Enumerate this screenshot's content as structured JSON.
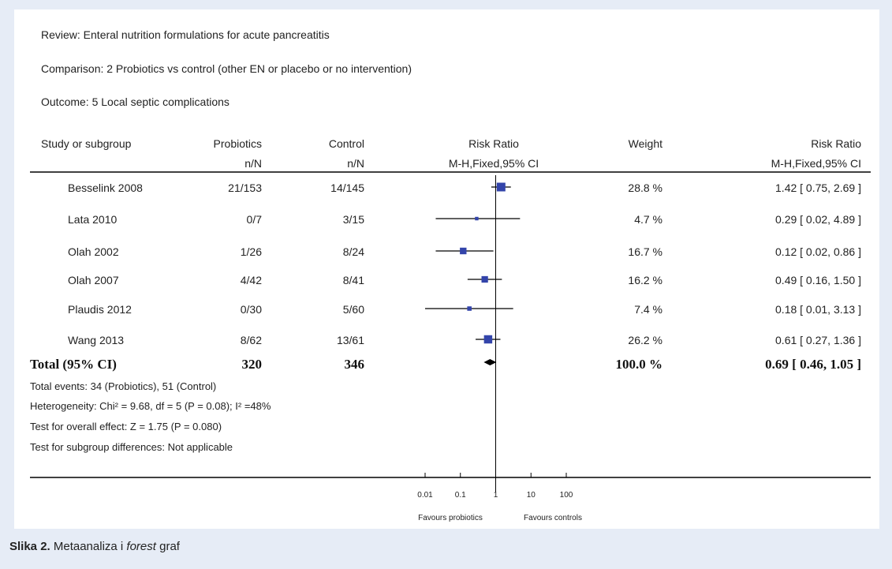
{
  "header": {
    "review": "Review:   Enteral nutrition formulations for acute pancreatitis",
    "comparison": "Comparison:   2 Probiotics vs control (other EN or placebo or no intervention)",
    "outcome": "Outcome:   5 Local septic complications"
  },
  "columns": {
    "study": "Study or subgroup",
    "probiotics": "Probiotics",
    "probiotics_sub": "n/N",
    "control": "Control",
    "control_sub": "n/N",
    "rr_plot": "Risk Ratio",
    "rr_plot_sub": "M-H,Fixed,95% CI",
    "weight": "Weight",
    "rr": "Risk Ratio",
    "rr_sub": "M-H,Fixed,95% CI"
  },
  "chart_data": {
    "type": "forest",
    "scale": "log",
    "xlim": [
      0.01,
      100
    ],
    "ticks": [
      {
        "value": 0.01,
        "label": "0.01"
      },
      {
        "value": 0.1,
        "label": "0.1"
      },
      {
        "value": 1,
        "label": "1"
      },
      {
        "value": 10,
        "label": "10"
      },
      {
        "value": 100,
        "label": "100"
      }
    ],
    "favours_left": "Favours probiotics",
    "favours_right": "Favours controls",
    "studies": [
      {
        "name": "Besselink 2008",
        "probiotics": "21/153",
        "control": "14/145",
        "weight": "28.8 %",
        "rr_text": "1.42 [ 0.75, 2.69 ]",
        "rr": 1.42,
        "lo": 0.75,
        "hi": 2.69,
        "w": 28.8
      },
      {
        "name": "Lata 2010",
        "probiotics": "0/7",
        "control": "3/15",
        "weight": "4.7 %",
        "rr_text": "0.29 [ 0.02, 4.89 ]",
        "rr": 0.29,
        "lo": 0.02,
        "hi": 4.89,
        "w": 4.7
      },
      {
        "name": "Olah 2002",
        "probiotics": "1/26",
        "control": "8/24",
        "weight": "16.7 %",
        "rr_text": "0.12 [ 0.02, 0.86 ]",
        "rr": 0.12,
        "lo": 0.02,
        "hi": 0.86,
        "w": 16.7
      },
      {
        "name": "Olah 2007",
        "probiotics": "4/42",
        "control": "8/41",
        "weight": "16.2 %",
        "rr_text": "0.49 [ 0.16, 1.50 ]",
        "rr": 0.49,
        "lo": 0.16,
        "hi": 1.5,
        "w": 16.2
      },
      {
        "name": "Plaudis 2012",
        "probiotics": "0/30",
        "control": "5/60",
        "weight": "7.4 %",
        "rr_text": "0.18 [ 0.01, 3.13 ]",
        "rr": 0.18,
        "lo": 0.01,
        "hi": 3.13,
        "w": 7.4
      },
      {
        "name": "Wang 2013",
        "probiotics": "8/62",
        "control": "13/61",
        "weight": "26.2 %",
        "rr_text": "0.61 [ 0.27, 1.36 ]",
        "rr": 0.61,
        "lo": 0.27,
        "hi": 1.36,
        "w": 26.2
      }
    ],
    "total": {
      "name": "Total (95% CI)",
      "probiotics": "320",
      "control": "346",
      "weight": "100.0 %",
      "rr_text": "0.69 [ 0.46, 1.05 ]",
      "rr": 0.69,
      "lo": 0.46,
      "hi": 1.05
    }
  },
  "footer": {
    "events": "Total events: 34 (Probiotics), 51 (Control)",
    "heterogeneity": "Heterogeneity: Chi² = 9.68, df = 5 (P = 0.08); I² =48%",
    "overall": "Test for overall effect: Z = 1.75 (P = 0.080)",
    "subgroup": "Test for subgroup differences: Not applicable"
  },
  "caption": {
    "prefix": "Slika 2.",
    "text_before": " Metaanaliza i ",
    "italic": "forest",
    "text_after": " graf"
  },
  "colors": {
    "marker": "#3344aa",
    "line": "#000000",
    "background": "#e6ecf6"
  }
}
